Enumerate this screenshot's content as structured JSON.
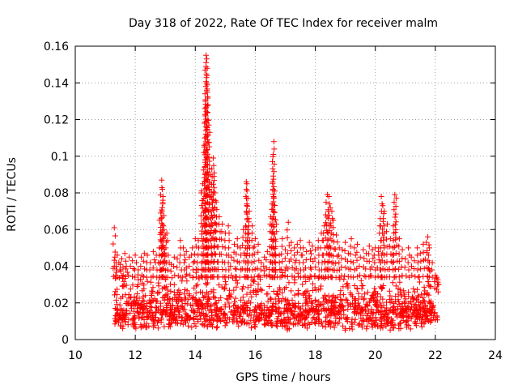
{
  "chart_data": {
    "type": "scatter",
    "title": "Day 318 of 2022, Rate Of TEC Index for receiver malm",
    "xlabel": "GPS time / hours",
    "ylabel": "ROTI / TECUs",
    "xlim": [
      10,
      24
    ],
    "ylim": [
      0,
      0.16
    ],
    "x_ticks": [
      10,
      12,
      14,
      16,
      18,
      20,
      22,
      24
    ],
    "x_tick_labels": [
      "10",
      "12",
      "14",
      "16",
      "18",
      "20",
      "22",
      "24"
    ],
    "y_ticks": [
      0,
      0.02,
      0.04,
      0.06,
      0.08,
      0.1,
      0.12,
      0.14,
      0.16
    ],
    "y_tick_labels": [
      "0",
      "0.02",
      "0.04",
      "0.06",
      "0.08",
      "0.1",
      "0.12",
      "0.14",
      "0.16"
    ],
    "grid": true,
    "marker": "plus",
    "color": "#ff0000",
    "series": [
      {
        "name": "ROTI",
        "x": [
          11.3,
          11.32,
          11.36,
          11.4,
          11.45,
          11.5,
          11.55,
          11.6,
          11.65,
          11.7,
          11.8,
          11.9,
          12.0,
          12.1,
          12.2,
          12.3,
          12.4,
          12.5,
          12.6,
          12.7,
          12.8,
          12.85,
          12.88,
          12.9,
          12.92,
          12.95,
          13.0,
          13.05,
          13.1,
          13.2,
          13.3,
          13.4,
          13.5,
          13.6,
          13.7,
          13.8,
          13.9,
          14.0,
          14.1,
          14.2,
          14.25,
          14.3,
          14.32,
          14.35,
          14.36,
          14.38,
          14.4,
          14.42,
          14.45,
          14.5,
          14.55,
          14.6,
          14.62,
          14.65,
          14.7,
          14.8,
          14.9,
          15.0,
          15.1,
          15.2,
          15.3,
          15.4,
          15.5,
          15.6,
          15.7,
          15.72,
          15.75,
          15.8,
          15.9,
          16.0,
          16.1,
          16.2,
          16.3,
          16.4,
          16.5,
          16.55,
          16.58,
          16.6,
          16.62,
          16.65,
          16.7,
          16.8,
          16.9,
          17.0,
          17.1,
          17.2,
          17.3,
          17.4,
          17.5,
          17.6,
          17.7,
          17.8,
          17.9,
          18.0,
          18.1,
          18.2,
          18.3,
          18.35,
          18.4,
          18.45,
          18.5,
          18.55,
          18.6,
          18.7,
          18.8,
          18.9,
          19.0,
          19.1,
          19.2,
          19.3,
          19.4,
          19.5,
          19.6,
          19.7,
          19.8,
          19.9,
          20.0,
          20.1,
          20.15,
          20.2,
          20.25,
          20.3,
          20.4,
          20.5,
          20.6,
          20.65,
          20.7,
          20.8,
          20.9,
          21.0,
          21.1,
          21.2,
          21.3,
          21.4,
          21.5,
          21.6,
          21.7,
          21.75,
          21.8,
          21.9,
          22.0,
          22.05,
          22.1
        ],
        "y": [
          0.061,
          0.045,
          0.04,
          0.046,
          0.042,
          0.041,
          0.044,
          0.035,
          0.047,
          0.04,
          0.045,
          0.043,
          0.046,
          0.038,
          0.045,
          0.047,
          0.046,
          0.042,
          0.048,
          0.046,
          0.05,
          0.069,
          0.087,
          0.082,
          0.076,
          0.06,
          0.057,
          0.058,
          0.046,
          0.041,
          0.045,
          0.044,
          0.054,
          0.05,
          0.048,
          0.045,
          0.05,
          0.055,
          0.054,
          0.08,
          0.085,
          0.105,
          0.126,
          0.138,
          0.155,
          0.153,
          0.148,
          0.128,
          0.117,
          0.09,
          0.093,
          0.099,
          0.089,
          0.08,
          0.075,
          0.067,
          0.063,
          0.058,
          0.062,
          0.045,
          0.052,
          0.055,
          0.05,
          0.06,
          0.086,
          0.085,
          0.077,
          0.07,
          0.062,
          0.055,
          0.052,
          0.042,
          0.045,
          0.048,
          0.063,
          0.071,
          0.086,
          0.101,
          0.108,
          0.081,
          0.063,
          0.046,
          0.055,
          0.049,
          0.064,
          0.053,
          0.05,
          0.052,
          0.054,
          0.05,
          0.048,
          0.053,
          0.051,
          0.049,
          0.054,
          0.058,
          0.062,
          0.068,
          0.079,
          0.078,
          0.072,
          0.07,
          0.065,
          0.057,
          0.05,
          0.049,
          0.053,
          0.047,
          0.055,
          0.05,
          0.052,
          0.045,
          0.049,
          0.047,
          0.051,
          0.049,
          0.05,
          0.048,
          0.062,
          0.078,
          0.073,
          0.07,
          0.063,
          0.055,
          0.062,
          0.079,
          0.077,
          0.055,
          0.049,
          0.044,
          0.05,
          0.045,
          0.043,
          0.05,
          0.047,
          0.052,
          0.053,
          0.056,
          0.05,
          0.042,
          0.035,
          0.034,
          0.03
        ],
        "baseline_band": {
          "x_range": [
            11.3,
            22.1
          ],
          "y_range": [
            0.005,
            0.04
          ]
        }
      }
    ]
  }
}
